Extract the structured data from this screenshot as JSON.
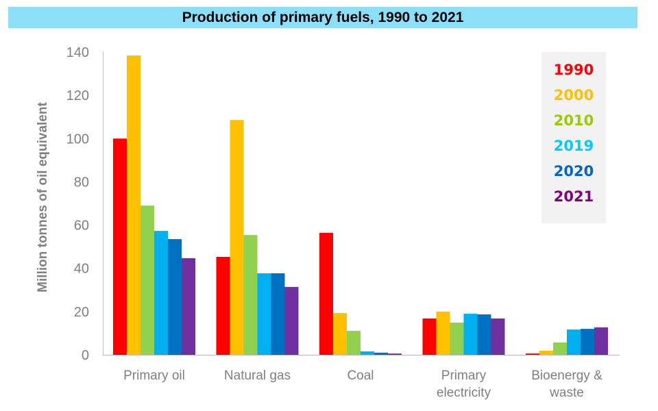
{
  "chart_data": {
    "type": "bar",
    "title": "Production of primary fuels, 1990 to 2021",
    "xlabel": "",
    "ylabel": "Million tonnes of oil equivalent",
    "ylim": [
      0,
      140
    ],
    "yticks": [
      0,
      20,
      40,
      60,
      80,
      100,
      120,
      140
    ],
    "grid": false,
    "legend_position": "top-right",
    "categories": [
      [
        "Primary oil"
      ],
      [
        "Natural gas"
      ],
      [
        "Coal"
      ],
      [
        "Primary",
        "electricity"
      ],
      [
        "Bioenergy &",
        "waste"
      ]
    ],
    "category_names": [
      "Primary oil",
      "Natural gas",
      "Coal",
      "Primary electricity",
      "Bioenergy & waste"
    ],
    "series": [
      {
        "name": "1990",
        "color": "#ff0000",
        "values": [
          100,
          45.3,
          56.4,
          16.8,
          0.6
        ]
      },
      {
        "name": "2000",
        "color": "#ffc000",
        "values": [
          138.4,
          108.6,
          19.3,
          20.0,
          1.9
        ]
      },
      {
        "name": "2010",
        "color": "#92d050",
        "values": [
          69.0,
          55.4,
          11.1,
          14.9,
          5.7
        ]
      },
      {
        "name": "2019",
        "color": "#00b0f0",
        "values": [
          57.3,
          37.7,
          1.6,
          19.0,
          11.7
        ]
      },
      {
        "name": "2020",
        "color": "#0070c0",
        "values": [
          53.5,
          37.7,
          1.0,
          18.7,
          12.0
        ]
      },
      {
        "name": "2021",
        "color": "#7030a0",
        "values": [
          44.7,
          31.4,
          0.6,
          16.8,
          12.7
        ]
      }
    ]
  },
  "legend_colors": {
    "1990": "#ff0000",
    "2000": "#ffc000",
    "2010": "#99cc00",
    "2019": "#00ccff",
    "2020": "#0066cc",
    "2021": "#800080"
  }
}
